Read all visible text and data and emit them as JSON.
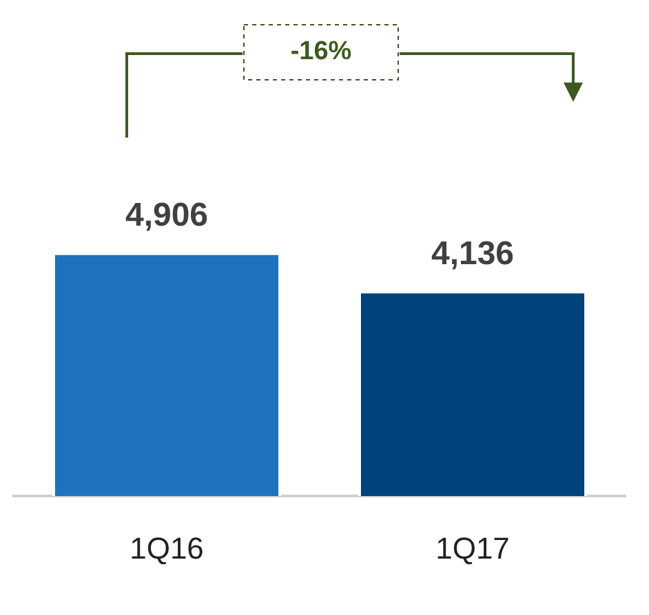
{
  "chart_data": {
    "type": "bar",
    "categories": [
      "1Q16",
      "1Q17"
    ],
    "values": [
      4906,
      4136
    ],
    "colors": [
      "#1f72bd",
      "#00427a"
    ],
    "value_labels": [
      "4,906",
      "4,136"
    ],
    "annotations": [
      "-16%"
    ],
    "tick_labels": "x",
    "grid": false,
    "legend": false
  }
}
